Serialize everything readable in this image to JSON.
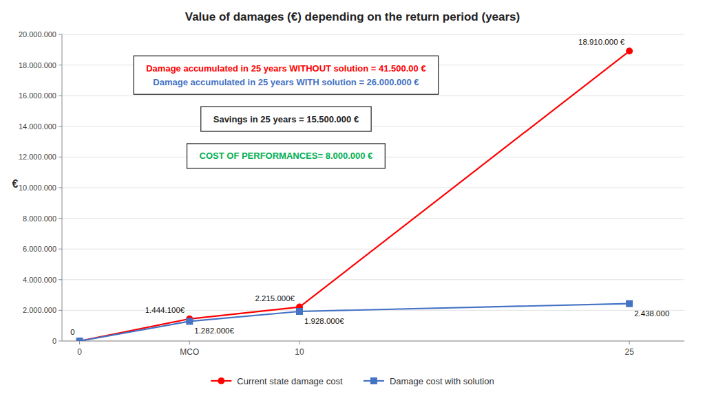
{
  "chart_data": {
    "type": "line",
    "title": "Value of damages (€) depending on the return period (years)",
    "ylabel": "€",
    "x": [
      0,
      5,
      10,
      25
    ],
    "xlim": [
      -0.8,
      27.5
    ],
    "xticks": [
      0,
      {
        "value": 5,
        "label": "MCO"
      },
      10,
      25
    ],
    "ylim": [
      0,
      20000000
    ],
    "yticks": [
      0,
      {
        "value": 2000000,
        "label": "2.000.000"
      },
      {
        "value": 4000000,
        "label": "4.000.000"
      },
      {
        "value": 6000000,
        "label": "6.000.000"
      },
      {
        "value": 8000000,
        "label": "8.000.000"
      },
      {
        "value": 10000000,
        "label": "10.000.000"
      },
      {
        "value": 12000000,
        "label": "12.000.000"
      },
      {
        "value": 14000000,
        "label": "14.000.000"
      },
      {
        "value": 16000000,
        "label": "16.000.000"
      },
      {
        "value": 18000000,
        "label": "18.000.000"
      },
      {
        "value": 20000000,
        "label": "20.000.000"
      }
    ],
    "grid": true,
    "legend": "bottom",
    "data_labels": true,
    "series": [
      {
        "name": "Current state damage cost",
        "color": "#FF0000",
        "marker": "circle",
        "values": [
          0,
          1444100,
          2215000,
          18910000
        ],
        "value_labels": [
          "0",
          "1.444.100€",
          "2.215.000€",
          "18.910.000 €"
        ]
      },
      {
        "name": "Damage cost with solution",
        "color": "#4472C4",
        "marker": "square",
        "values": [
          0,
          1282000,
          1928000,
          2438000
        ],
        "value_labels": [
          null,
          "1.282.000€",
          "1.928.000€",
          "2.438.000"
        ]
      }
    ],
    "annotations": [
      [
        {
          "text": "Damage accumulated in 25 years WITHOUT solution = 41.500.00 €",
          "color": "#FF0000"
        },
        {
          "text": "Damage accumulated in 25 years WITH solution = 26.000.000 €",
          "color": "#4472C4"
        }
      ],
      [
        {
          "text": "Savings in 25 years = 15.500.000 €"
        }
      ],
      [
        {
          "text": "COST OF PERFORMANCES= 8.000.000 €",
          "color": "#00B050"
        }
      ]
    ]
  }
}
